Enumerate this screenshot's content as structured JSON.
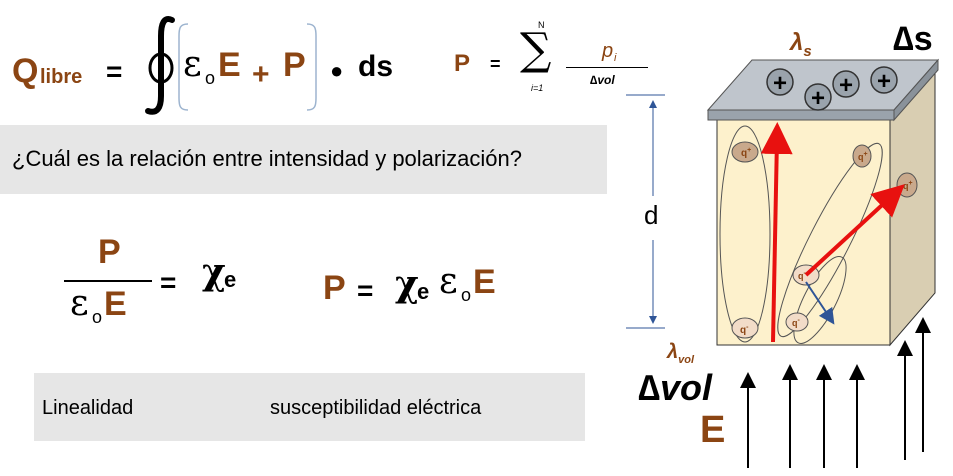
{
  "formula_gauss": {
    "q": "Q",
    "q_sub": "libre",
    "eq": "=",
    "eps": "ε",
    "eps_sub": "o",
    "e": "E",
    "plus": "+",
    "p": "P",
    "dot": "●",
    "ds": "ds"
  },
  "formula_sum": {
    "p": "P",
    "eq": "=",
    "sigma": "∑",
    "upper": "N",
    "lower": "i=1",
    "num": "p",
    "num_sub": "i",
    "den": "∆vol"
  },
  "question": "¿Cuál es la relación entre intensidad y polarización?",
  "ratio": {
    "num": "P",
    "den_eps": "ε",
    "den_sub": "o",
    "den_e": "E",
    "eq": "=",
    "chi": "χ",
    "chi_sub": "e"
  },
  "relation": {
    "p": "P",
    "eq": "=",
    "chi": "χ",
    "chi_sub": "e",
    "eps": "ε",
    "eps_sub": "o",
    "e": "E"
  },
  "labels": {
    "linealidad": "Linealidad",
    "susceptibilidad": "susceptibilidad eléctrica"
  },
  "diagram": {
    "d": "d",
    "lambda_s": "λ",
    "lambda_s_sub": "s",
    "delta_s": "∆s",
    "lambda_vol": "λ",
    "lambda_vol_sub": "vol",
    "delta_vol": "∆vol",
    "field": "E",
    "plus": "+",
    "q": "q",
    "q_plus": "+",
    "q_minus": "-"
  },
  "colors": {
    "brown": "#8B4513",
    "band": "#e6e6e6",
    "block_front": "#fdf1cc",
    "block_side": "#d9ceb2",
    "plate": "#bfc5cc",
    "arrow_red": "#e8110f",
    "arrow_blue": "#2f5597"
  }
}
